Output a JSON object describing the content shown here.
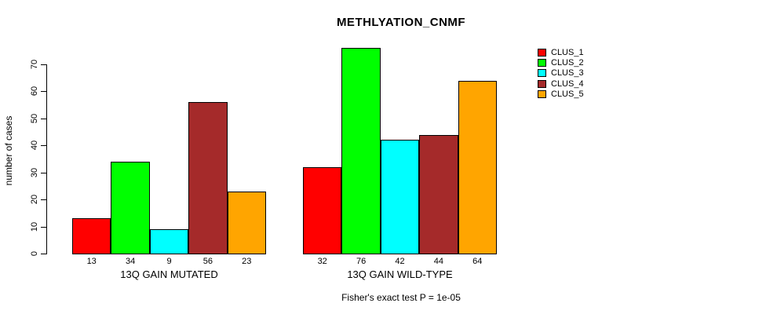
{
  "title": "METHLYATION_CNMF",
  "footer": "Fisher's exact test P = 1e-05",
  "y_axis": {
    "label": "number of cases",
    "ticks": [
      0,
      10,
      20,
      30,
      40,
      50,
      60,
      70
    ]
  },
  "chart_data": {
    "type": "bar",
    "title": "METHLYATION_CNMF",
    "xlabel": "",
    "ylabel": "number of cases",
    "ylim": [
      0,
      70
    ],
    "yticks": [
      0,
      10,
      20,
      30,
      40,
      50,
      60,
      70
    ],
    "grid": false,
    "legend_position": "right",
    "bar_borders": "#000000",
    "categories": [
      "13Q GAIN MUTATED",
      "13Q GAIN WILD-TYPE"
    ],
    "series": [
      {
        "name": "CLUS_1",
        "color": "#FF0000",
        "values": [
          13,
          32
        ]
      },
      {
        "name": "CLUS_2",
        "color": "#00FF00",
        "values": [
          34,
          76
        ]
      },
      {
        "name": "CLUS_3",
        "color": "#00FFFF",
        "values": [
          9,
          42
        ]
      },
      {
        "name": "CLUS_4",
        "color": "#A52A2A",
        "values": [
          56,
          44
        ]
      },
      {
        "name": "CLUS_5",
        "color": "#FFA500",
        "values": [
          23,
          64
        ]
      }
    ],
    "bar_value_labels": [
      [
        13,
        34,
        9,
        56,
        23
      ],
      [
        32,
        76,
        42,
        44,
        64
      ]
    ],
    "annotation": "Fisher's exact test P = 1e-05"
  },
  "legend": {
    "entries": [
      {
        "label": "CLUS_1",
        "color": "#FF0000"
      },
      {
        "label": "CLUS_2",
        "color": "#00FF00"
      },
      {
        "label": "CLUS_3",
        "color": "#00FFFF"
      },
      {
        "label": "CLUS_4",
        "color": "#A52A2A"
      },
      {
        "label": "CLUS_5",
        "color": "#FFA500"
      }
    ]
  }
}
